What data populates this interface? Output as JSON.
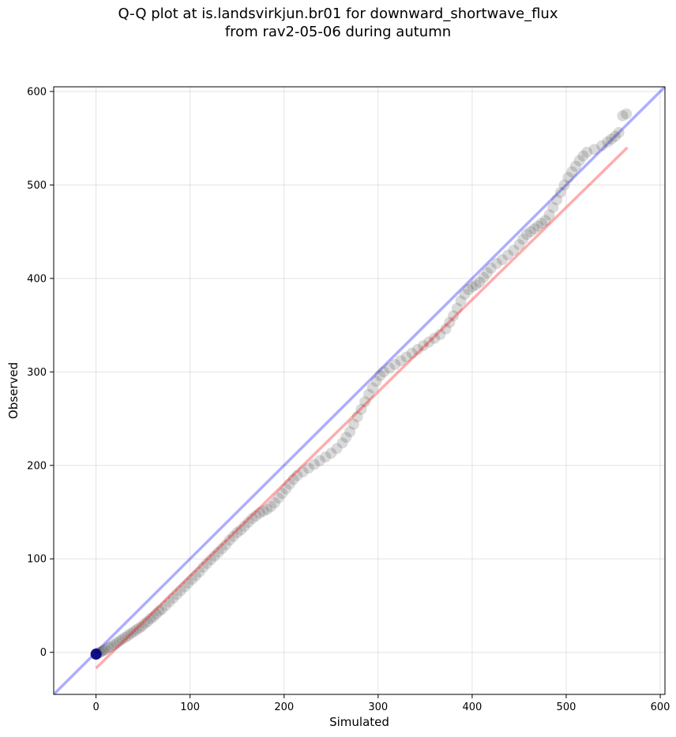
{
  "chart_data": {
    "type": "scatter",
    "title": [
      "Q-Q plot at is.landsvirkjun.br01 for downward_shortwave_flux",
      "from rav2-05-06 during autumn"
    ],
    "xlabel": "Simulated",
    "ylabel": "Observed",
    "xlim": [
      -45,
      605
    ],
    "ylim": [
      -45,
      605
    ],
    "xticks": [
      0,
      100,
      200,
      300,
      400,
      500,
      600
    ],
    "yticks": [
      0,
      100,
      200,
      300,
      400,
      500,
      600
    ],
    "grid": true,
    "reference_line": {
      "x": [
        -45,
        605
      ],
      "y": [
        -45,
        605
      ],
      "color": "#0000ff"
    },
    "fit_line": {
      "x": [
        0,
        565
      ],
      "y": [
        -17,
        540
      ],
      "color": "#ff0000"
    },
    "points_color": "#444444",
    "start_marker_color": "#000080",
    "points": [
      [
        0,
        -2
      ],
      [
        1,
        -1
      ],
      [
        2,
        -1
      ],
      [
        4,
        0
      ],
      [
        6,
        1
      ],
      [
        8,
        2
      ],
      [
        10,
        3
      ],
      [
        13,
        5
      ],
      [
        16,
        6
      ],
      [
        19,
        8
      ],
      [
        22,
        10
      ],
      [
        25,
        12
      ],
      [
        28,
        14
      ],
      [
        31,
        16
      ],
      [
        34,
        18
      ],
      [
        37,
        20
      ],
      [
        40,
        22
      ],
      [
        43,
        24
      ],
      [
        46,
        26
      ],
      [
        49,
        28
      ],
      [
        52,
        31
      ],
      [
        55,
        33
      ],
      [
        58,
        36
      ],
      [
        61,
        38
      ],
      [
        64,
        41
      ],
      [
        67,
        44
      ],
      [
        70,
        46
      ],
      [
        74,
        50
      ],
      [
        78,
        54
      ],
      [
        82,
        58
      ],
      [
        86,
        62
      ],
      [
        90,
        66
      ],
      [
        94,
        70
      ],
      [
        98,
        74
      ],
      [
        102,
        78
      ],
      [
        106,
        82
      ],
      [
        110,
        86
      ],
      [
        114,
        91
      ],
      [
        118,
        95
      ],
      [
        122,
        99
      ],
      [
        126,
        103
      ],
      [
        130,
        107
      ],
      [
        134,
        111
      ],
      [
        138,
        115
      ],
      [
        142,
        120
      ],
      [
        146,
        124
      ],
      [
        150,
        128
      ],
      [
        154,
        131
      ],
      [
        158,
        135
      ],
      [
        162,
        139
      ],
      [
        166,
        143
      ],
      [
        170,
        146
      ],
      [
        174,
        149
      ],
      [
        178,
        151
      ],
      [
        182,
        153
      ],
      [
        186,
        156
      ],
      [
        190,
        160
      ],
      [
        194,
        165
      ],
      [
        198,
        170
      ],
      [
        202,
        175
      ],
      [
        206,
        180
      ],
      [
        210,
        185
      ],
      [
        214,
        189
      ],
      [
        220,
        193
      ],
      [
        226,
        197
      ],
      [
        232,
        201
      ],
      [
        238,
        205
      ],
      [
        244,
        209
      ],
      [
        250,
        213
      ],
      [
        256,
        218
      ],
      [
        262,
        224
      ],
      [
        266,
        230
      ],
      [
        270,
        236
      ],
      [
        274,
        244
      ],
      [
        278,
        252
      ],
      [
        282,
        260
      ],
      [
        286,
        268
      ],
      [
        290,
        276
      ],
      [
        294,
        283
      ],
      [
        298,
        290
      ],
      [
        302,
        296
      ],
      [
        306,
        300
      ],
      [
        312,
        304
      ],
      [
        318,
        308
      ],
      [
        324,
        312
      ],
      [
        330,
        316
      ],
      [
        336,
        320
      ],
      [
        342,
        324
      ],
      [
        348,
        328
      ],
      [
        354,
        332
      ],
      [
        360,
        336
      ],
      [
        366,
        340
      ],
      [
        372,
        346
      ],
      [
        376,
        353
      ],
      [
        380,
        360
      ],
      [
        384,
        368
      ],
      [
        388,
        376
      ],
      [
        392,
        383
      ],
      [
        396,
        388
      ],
      [
        400,
        391
      ],
      [
        404,
        393
      ],
      [
        408,
        396
      ],
      [
        412,
        401
      ],
      [
        416,
        406
      ],
      [
        420,
        411
      ],
      [
        426,
        416
      ],
      [
        432,
        420
      ],
      [
        438,
        425
      ],
      [
        444,
        430
      ],
      [
        450,
        436
      ],
      [
        454,
        442
      ],
      [
        458,
        447
      ],
      [
        462,
        450
      ],
      [
        466,
        453
      ],
      [
        470,
        456
      ],
      [
        474,
        459
      ],
      [
        478,
        462
      ],
      [
        482,
        468
      ],
      [
        486,
        476
      ],
      [
        490,
        484
      ],
      [
        494,
        492
      ],
      [
        498,
        500
      ],
      [
        502,
        508
      ],
      [
        506,
        514
      ],
      [
        510,
        520
      ],
      [
        514,
        526
      ],
      [
        518,
        531
      ],
      [
        522,
        535
      ],
      [
        530,
        538
      ],
      [
        538,
        542
      ],
      [
        544,
        546
      ],
      [
        548,
        549
      ],
      [
        552,
        552
      ],
      [
        556,
        556
      ],
      [
        560,
        574
      ],
      [
        564,
        576
      ]
    ]
  }
}
